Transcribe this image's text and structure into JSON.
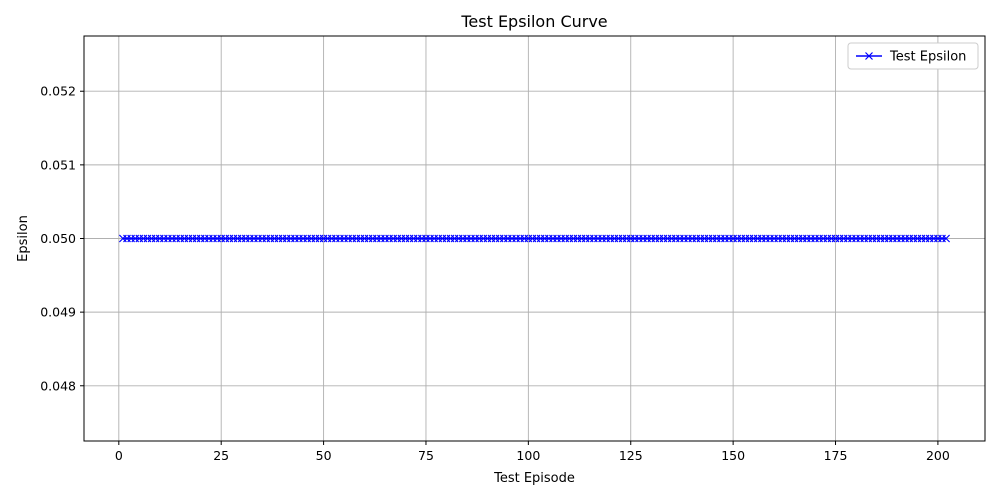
{
  "chart_data": {
    "type": "line",
    "title": "Test Epsilon Curve",
    "xlabel": "Test Episode",
    "ylabel": "Epsilon",
    "xlim": [
      -8.5,
      211.5
    ],
    "ylim": [
      0.04725,
      0.05275
    ],
    "xticks": [
      0,
      25,
      50,
      75,
      100,
      125,
      150,
      175,
      200
    ],
    "yticks": [
      0.048,
      0.049,
      0.05,
      0.051,
      0.052
    ],
    "ytick_format": 3,
    "grid": true,
    "legend_position": "top-right",
    "series": [
      {
        "name": "Test Epsilon",
        "color": "#0000ff",
        "marker": "x",
        "x_start": 1,
        "x_end": 202,
        "x_step": 1,
        "y_constant": 0.05
      }
    ]
  }
}
